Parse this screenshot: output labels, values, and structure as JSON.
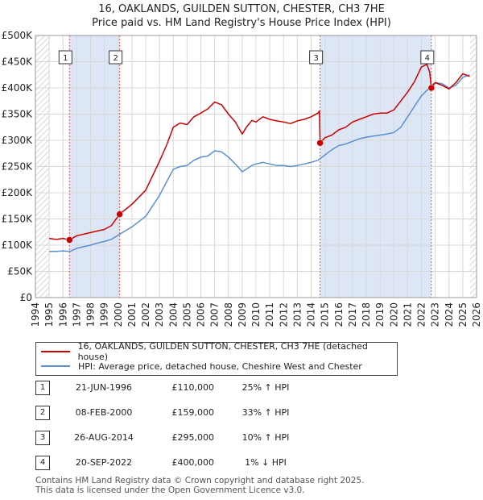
{
  "chart_data": {
    "type": "line",
    "title": "16, OAKLANDS, GUILDEN SUTTON, CHESTER, CH3 7HE",
    "subtitle": "Price paid vs. HM Land Registry's House Price Index (HPI)",
    "xlim": [
      1994,
      2026
    ],
    "ylim": [
      0,
      500000
    ],
    "yticks": [
      0,
      50000,
      100000,
      150000,
      200000,
      250000,
      300000,
      350000,
      400000,
      450000,
      500000
    ],
    "ytick_labels": [
      "£0",
      "£50K",
      "£100K",
      "£150K",
      "£200K",
      "£250K",
      "£300K",
      "£350K",
      "£400K",
      "£450K",
      "£500K"
    ],
    "xticks": [
      "1994",
      "1995",
      "1996",
      "1997",
      "1998",
      "1999",
      "2000",
      "2001",
      "2002",
      "2003",
      "2004",
      "2005",
      "2006",
      "2007",
      "2008",
      "2009",
      "2010",
      "2011",
      "2012",
      "2013",
      "2014",
      "2015",
      "2016",
      "2017",
      "2018",
      "2019",
      "2020",
      "2021",
      "2022",
      "2023",
      "2024",
      "2025",
      "2026"
    ],
    "data_start": 1995,
    "data_end": 2025.5,
    "series": [
      {
        "name": "16, OAKLANDS, GUILDEN SUTTON, CHESTER, CH3 7HE (detached house)",
        "color": "#cc0000",
        "x": [
          1995.0,
          1995.5,
          1996.0,
          1996.47,
          1997.0,
          1997.5,
          1998.0,
          1998.5,
          1999.0,
          1999.5,
          2000.11,
          2001.0,
          2002.0,
          2003.0,
          2003.5,
          2004.0,
          2004.5,
          2005.0,
          2005.5,
          2006.0,
          2006.5,
          2007.0,
          2007.5,
          2008.0,
          2008.5,
          2009.0,
          2009.3,
          2009.7,
          2010.0,
          2010.5,
          2011.0,
          2011.5,
          2012.0,
          2012.5,
          2013.0,
          2013.5,
          2014.0,
          2014.5,
          2014.6,
          2014.65,
          2015.0,
          2015.5,
          2016.0,
          2016.5,
          2017.0,
          2017.5,
          2018.0,
          2018.5,
          2019.0,
          2019.5,
          2020.0,
          2020.5,
          2021.0,
          2021.5,
          2022.0,
          2022.4,
          2022.6,
          2022.72,
          2023.0,
          2023.5,
          2024.0,
          2024.5,
          2025.0,
          2025.5
        ],
        "y": [
          113000,
          111000,
          113000,
          110000,
          118000,
          121000,
          124000,
          127000,
          130000,
          137000,
          159000,
          178000,
          205000,
          260000,
          290000,
          325000,
          333000,
          330000,
          345000,
          352000,
          360000,
          373000,
          368000,
          350000,
          335000,
          312000,
          325000,
          338000,
          335000,
          345000,
          340000,
          337000,
          335000,
          332000,
          337000,
          340000,
          345000,
          352000,
          356000,
          295000,
          305000,
          310000,
          320000,
          325000,
          335000,
          340000,
          345000,
          350000,
          352000,
          352000,
          358000,
          375000,
          392000,
          412000,
          440000,
          445000,
          430000,
          400000,
          410000,
          405000,
          398000,
          410000,
          427000,
          422000
        ]
      },
      {
        "name": "HPI: Average price, detached house, Cheshire West and Chester",
        "color": "#5b8fd1",
        "x": [
          1995.0,
          1995.5,
          1996.0,
          1996.5,
          1997.0,
          1997.5,
          1998.0,
          1998.5,
          1999.0,
          1999.5,
          2000.0,
          2000.5,
          2001.0,
          2001.5,
          2002.0,
          2002.5,
          2003.0,
          2003.5,
          2004.0,
          2004.5,
          2005.0,
          2005.5,
          2006.0,
          2006.5,
          2007.0,
          2007.5,
          2008.0,
          2008.5,
          2009.0,
          2009.3,
          2009.7,
          2010.0,
          2010.5,
          2011.0,
          2011.5,
          2012.0,
          2012.5,
          2013.0,
          2013.5,
          2014.0,
          2014.5,
          2015.0,
          2015.5,
          2016.0,
          2016.5,
          2017.0,
          2017.5,
          2018.0,
          2018.5,
          2019.0,
          2019.5,
          2020.0,
          2020.5,
          2021.0,
          2021.5,
          2022.0,
          2022.5,
          2022.72,
          2023.0,
          2023.5,
          2024.0,
          2024.5,
          2025.0,
          2025.5
        ],
        "y": [
          88000,
          88000,
          89000,
          88000,
          94000,
          97000,
          100000,
          104000,
          107000,
          111000,
          119000,
          127000,
          135000,
          145000,
          155000,
          175000,
          195000,
          220000,
          245000,
          250000,
          252000,
          262000,
          268000,
          270000,
          280000,
          278000,
          268000,
          255000,
          240000,
          245000,
          252000,
          255000,
          258000,
          255000,
          252000,
          252000,
          250000,
          252000,
          255000,
          258000,
          262000,
          272000,
          282000,
          290000,
          293000,
          298000,
          303000,
          306000,
          308000,
          310000,
          312000,
          315000,
          325000,
          345000,
          365000,
          385000,
          398000,
          405000,
          410000,
          408000,
          400000,
          405000,
          420000,
          425000
        ]
      }
    ],
    "sales": [
      {
        "label": "1",
        "x": 1996.47,
        "price": 110000
      },
      {
        "label": "2",
        "x": 2000.11,
        "price": 159000
      },
      {
        "label": "3",
        "x": 2014.65,
        "price": 295000
      },
      {
        "label": "4",
        "x": 2022.72,
        "price": 400000
      }
    ]
  },
  "legend": {
    "property_label": "16, OAKLANDS, GUILDEN SUTTON, CHESTER, CH3 7HE (detached house)",
    "hpi_label": "HPI: Average price, detached house, Cheshire West and Chester"
  },
  "transactions": [
    {
      "num": "1",
      "date": "21-JUN-1996",
      "price": "£110,000",
      "hpi": "25% ↑ HPI"
    },
    {
      "num": "2",
      "date": "08-FEB-2000",
      "price": "£159,000",
      "hpi": "33% ↑ HPI"
    },
    {
      "num": "3",
      "date": "26-AUG-2014",
      "price": "£295,000",
      "hpi": "10% ↑ HPI"
    },
    {
      "num": "4",
      "date": "20-SEP-2022",
      "price": "£400,000",
      "hpi": "1% ↓ HPI"
    }
  ],
  "footer": {
    "line1": "Contains HM Land Registry data © Crown copyright and database right 2025.",
    "line2": "This data is licensed under the Open Government Licence v3.0."
  },
  "colors": {
    "property": "#cc0000",
    "hpi": "#5b8fd1",
    "shade": "#dde6f5",
    "hatch": "#c9c9c9"
  }
}
